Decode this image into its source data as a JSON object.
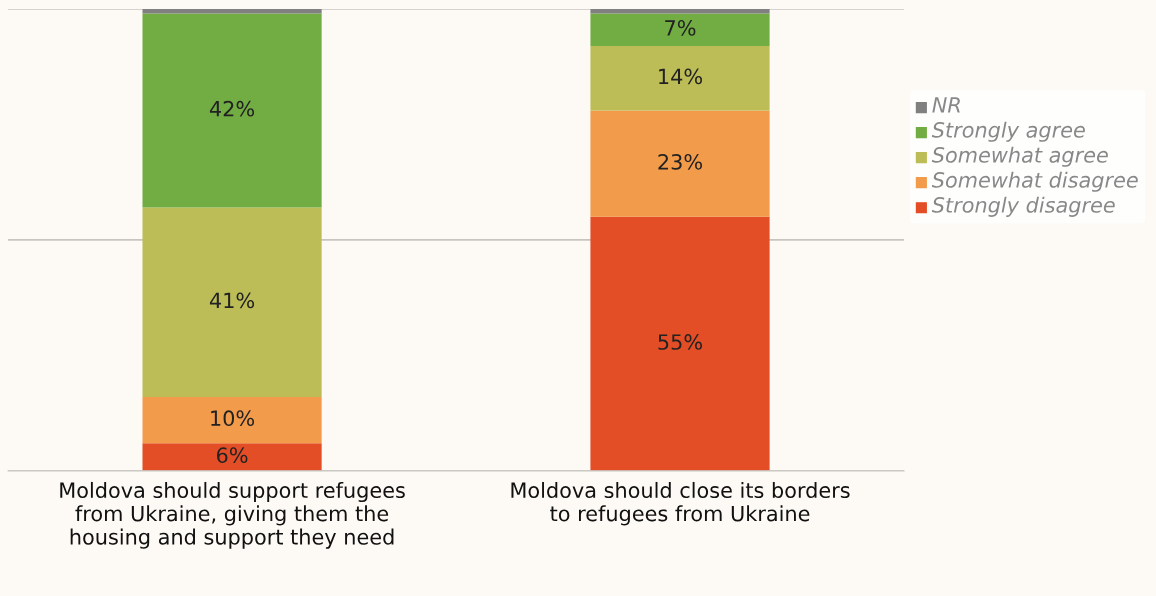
{
  "chart_data": {
    "type": "bar",
    "stacked": true,
    "categories": [
      "Moldova should support refugees from Ukraine, giving them the housing and support they need",
      "Moldova should close its borders to refugees from Ukraine"
    ],
    "series": [
      {
        "name": "Strongly disagree",
        "color": "#e34e26",
        "values": [
          6,
          55
        ],
        "value_labels": [
          "6%",
          "55%"
        ]
      },
      {
        "name": "Somewhat disagree",
        "color": "#f29b4b",
        "values": [
          10,
          23
        ],
        "value_labels": [
          "10%",
          "23%"
        ]
      },
      {
        "name": "Somewhat agree",
        "color": "#bdbd57",
        "values": [
          41,
          14
        ],
        "value_labels": [
          "41%",
          "14%"
        ]
      },
      {
        "name": "Strongly agree",
        "color": "#72ad43",
        "values": [
          42,
          7
        ],
        "value_labels": [
          "42%",
          "7%"
        ]
      },
      {
        "name": "NR",
        "color": "#808080",
        "values": [
          1,
          1
        ],
        "value_labels": [
          null,
          null
        ]
      }
    ],
    "ylim": [
      0,
      100
    ],
    "yticks": [
      {
        "value": 0,
        "label": null
      },
      {
        "value": 50,
        "label": null
      },
      {
        "value": 100,
        "label": null
      }
    ],
    "tick_labels": "x",
    "grid": "y",
    "legend": "right"
  }
}
